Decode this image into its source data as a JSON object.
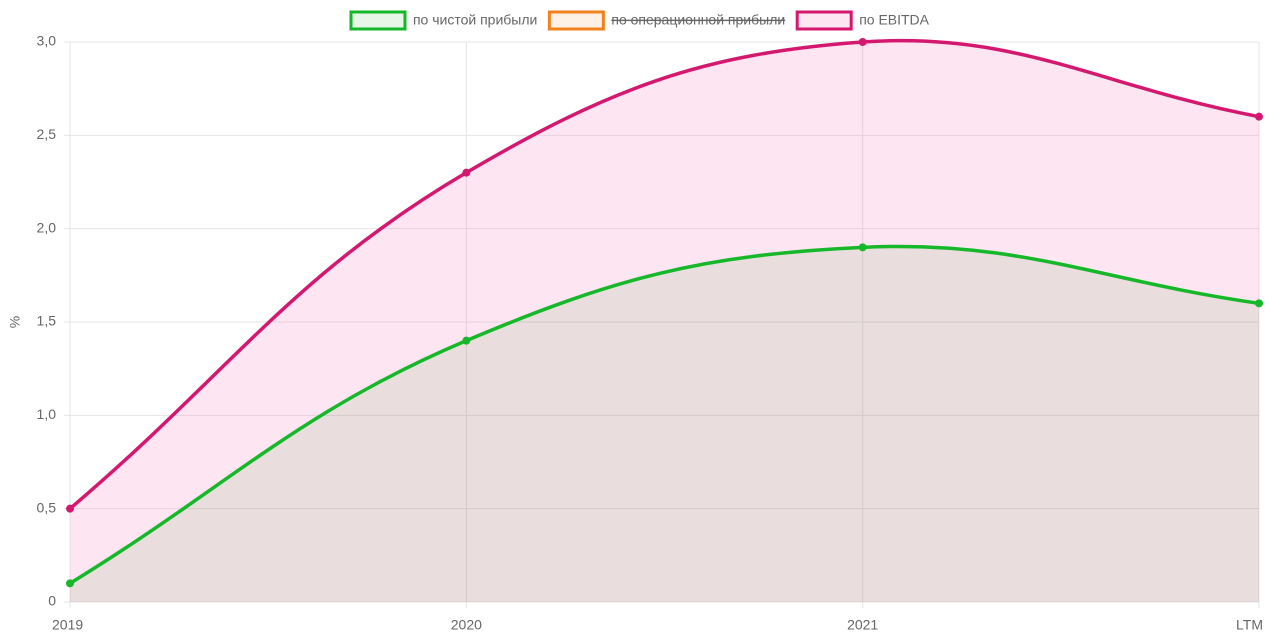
{
  "chart_data": {
    "type": "line",
    "categories": [
      "2019",
      "2020",
      "2021",
      "LTM"
    ],
    "series": [
      {
        "name": "по чистой прибыли",
        "color": "#16b82a",
        "fill": "rgba(40,170,40,0.11)",
        "values": [
          0.1,
          1.4,
          1.9,
          1.6
        ]
      },
      {
        "name": "по операционной прибыли",
        "color": "#f0821e",
        "fill": "rgba(240,130,30,0.11)",
        "hidden": true,
        "values": [
          null,
          null,
          null,
          null
        ]
      },
      {
        "name": "по EBITDA",
        "color": "#d4186f",
        "fill": "rgba(245,110,185,0.18)",
        "values": [
          0.5,
          2.3,
          3.0,
          2.6
        ]
      }
    ],
    "ylabel": "%",
    "ylim": [
      0,
      3
    ],
    "yticks": [
      0,
      {
        "value": 0.5,
        "label": "0,5"
      },
      {
        "value": 1,
        "label": "1,0"
      },
      {
        "value": 1.5,
        "label": "1,5"
      },
      {
        "value": 2,
        "label": "2,0"
      },
      {
        "value": 2.5,
        "label": "2,5"
      },
      {
        "value": 3,
        "label": "3,0"
      }
    ],
    "grid": true,
    "legend": "top",
    "fill": true
  }
}
